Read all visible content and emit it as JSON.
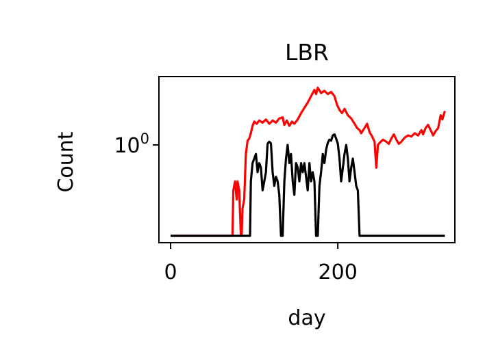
{
  "chart_data": {
    "type": "line",
    "title": "LBR",
    "xlabel": "day",
    "ylabel": "Count",
    "yscale": "log",
    "xlim": [
      -14,
      340
    ],
    "xticks": [
      {
        "value": 0,
        "label": "0"
      },
      {
        "value": 200,
        "label": "200"
      }
    ],
    "yticks": [
      {
        "value": 1,
        "label_base": "10",
        "label_exp": "0"
      }
    ],
    "grid": false,
    "legend": "none",
    "colors": {
      "series_a": "#ff0000",
      "series_b": "#000000",
      "axes": "#000000",
      "background": "#ffffff"
    },
    "series": [
      {
        "color": "#ff0000",
        "points": [
          [
            0,
            0.0
          ],
          [
            74,
            0.0
          ],
          [
            75,
            0.5
          ],
          [
            77,
            0.6
          ],
          [
            79,
            0.4
          ],
          [
            80,
            0.6
          ],
          [
            82,
            0.5
          ],
          [
            84,
            0.0
          ],
          [
            85,
            0.0
          ],
          [
            86,
            0.3
          ],
          [
            88,
            0.4
          ],
          [
            90,
            0.9
          ],
          [
            92,
            1.4
          ],
          [
            94,
            1.6
          ],
          [
            96,
            2.1
          ],
          [
            98,
            2.8
          ],
          [
            100,
            3.2
          ],
          [
            103,
            3.0
          ],
          [
            106,
            3.3
          ],
          [
            110,
            3.1
          ],
          [
            114,
            3.4
          ],
          [
            118,
            3.0
          ],
          [
            122,
            3.3
          ],
          [
            126,
            3.1
          ],
          [
            130,
            3.5
          ],
          [
            134,
            3.6
          ],
          [
            136,
            2.9
          ],
          [
            139,
            3.3
          ],
          [
            142,
            2.8
          ],
          [
            145,
            3.2
          ],
          [
            148,
            3.0
          ],
          [
            152,
            3.4
          ],
          [
            156,
            4.0
          ],
          [
            160,
            4.5
          ],
          [
            164,
            5.0
          ],
          [
            168,
            5.6
          ],
          [
            172,
            6.2
          ],
          [
            174,
            5.8
          ],
          [
            176,
            6.4
          ],
          [
            180,
            5.9
          ],
          [
            184,
            6.1
          ],
          [
            188,
            5.8
          ],
          [
            192,
            6.0
          ],
          [
            196,
            5.6
          ],
          [
            199,
            4.8
          ],
          [
            202,
            4.3
          ],
          [
            205,
            4.0
          ],
          [
            208,
            4.4
          ],
          [
            212,
            3.8
          ],
          [
            216,
            3.5
          ],
          [
            220,
            3.0
          ],
          [
            223,
            2.6
          ],
          [
            226,
            2.4
          ],
          [
            228,
            2.1
          ],
          [
            232,
            2.6
          ],
          [
            235,
            3.0
          ],
          [
            238,
            2.2
          ],
          [
            241,
            1.8
          ],
          [
            244,
            1.3
          ],
          [
            246,
            0.75
          ],
          [
            248,
            1.0
          ],
          [
            250,
            1.2
          ],
          [
            254,
            1.5
          ],
          [
            258,
            1.3
          ],
          [
            261,
            1.1
          ],
          [
            264,
            1.6
          ],
          [
            267,
            2.0
          ],
          [
            270,
            1.5
          ],
          [
            273,
            1.1
          ],
          [
            276,
            1.3
          ],
          [
            280,
            1.7
          ],
          [
            284,
            1.9
          ],
          [
            288,
            1.8
          ],
          [
            292,
            2.1
          ],
          [
            296,
            1.9
          ],
          [
            300,
            2.4
          ],
          [
            302,
            2.0
          ],
          [
            305,
            2.6
          ],
          [
            308,
            2.9
          ],
          [
            311,
            2.4
          ],
          [
            314,
            1.9
          ],
          [
            317,
            2.3
          ],
          [
            320,
            2.6
          ],
          [
            323,
            3.8
          ],
          [
            325,
            3.4
          ],
          [
            328,
            4.2
          ]
        ]
      },
      {
        "color": "#000000",
        "points": [
          [
            0,
            0.0
          ],
          [
            95,
            0.0
          ],
          [
            96,
            0.6
          ],
          [
            98,
            0.8
          ],
          [
            100,
            0.85
          ],
          [
            102,
            0.9
          ],
          [
            104,
            0.7
          ],
          [
            106,
            0.8
          ],
          [
            108,
            0.75
          ],
          [
            110,
            0.5
          ],
          [
            112,
            0.6
          ],
          [
            114,
            0.7
          ],
          [
            116,
            1.1
          ],
          [
            118,
            1.3
          ],
          [
            120,
            1.15
          ],
          [
            122,
            0.7
          ],
          [
            124,
            0.55
          ],
          [
            126,
            0.65
          ],
          [
            128,
            0.6
          ],
          [
            130,
            0.45
          ],
          [
            132,
            0.0
          ],
          [
            134,
            0.0
          ],
          [
            136,
            0.6
          ],
          [
            138,
            0.85
          ],
          [
            140,
            1.0
          ],
          [
            142,
            0.8
          ],
          [
            144,
            0.9
          ],
          [
            146,
            0.6
          ],
          [
            148,
            0.45
          ],
          [
            150,
            0.8
          ],
          [
            152,
            0.75
          ],
          [
            154,
            0.6
          ],
          [
            156,
            0.8
          ],
          [
            158,
            0.7
          ],
          [
            160,
            0.8
          ],
          [
            162,
            0.65
          ],
          [
            164,
            0.5
          ],
          [
            166,
            0.8
          ],
          [
            168,
            0.6
          ],
          [
            170,
            0.7
          ],
          [
            172,
            0.6
          ],
          [
            174,
            0.0
          ],
          [
            176,
            0.0
          ],
          [
            178,
            0.55
          ],
          [
            180,
            0.7
          ],
          [
            182,
            0.9
          ],
          [
            184,
            0.8
          ],
          [
            186,
            0.95
          ],
          [
            188,
            1.2
          ],
          [
            190,
            1.5
          ],
          [
            192,
            1.4
          ],
          [
            194,
            1.9
          ],
          [
            196,
            2.0
          ],
          [
            198,
            1.6
          ],
          [
            200,
            1.1
          ],
          [
            202,
            0.85
          ],
          [
            204,
            0.6
          ],
          [
            206,
            0.75
          ],
          [
            208,
            0.9
          ],
          [
            210,
            1.0
          ],
          [
            212,
            0.85
          ],
          [
            214,
            0.6
          ],
          [
            216,
            0.75
          ],
          [
            218,
            0.85
          ],
          [
            220,
            0.7
          ],
          [
            222,
            0.55
          ],
          [
            224,
            0.5
          ],
          [
            226,
            0.0
          ],
          [
            328,
            0.0
          ]
        ]
      }
    ]
  }
}
